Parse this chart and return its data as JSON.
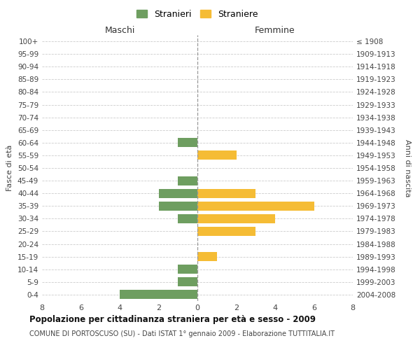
{
  "age_groups": [
    "100+",
    "95-99",
    "90-94",
    "85-89",
    "80-84",
    "75-79",
    "70-74",
    "65-69",
    "60-64",
    "55-59",
    "50-54",
    "45-49",
    "40-44",
    "35-39",
    "30-34",
    "25-29",
    "20-24",
    "15-19",
    "10-14",
    "5-9",
    "0-4"
  ],
  "birth_years": [
    "≤ 1908",
    "1909-1913",
    "1914-1918",
    "1919-1923",
    "1924-1928",
    "1929-1933",
    "1934-1938",
    "1939-1943",
    "1944-1948",
    "1949-1953",
    "1954-1958",
    "1959-1963",
    "1964-1968",
    "1969-1973",
    "1974-1978",
    "1979-1983",
    "1984-1988",
    "1989-1993",
    "1994-1998",
    "1999-2003",
    "2004-2008"
  ],
  "maschi_stranieri": [
    0,
    0,
    0,
    0,
    0,
    0,
    0,
    0,
    1,
    0,
    0,
    1,
    2,
    2,
    1,
    0,
    0,
    0,
    1,
    1,
    4
  ],
  "femmine_straniere": [
    0,
    0,
    0,
    0,
    0,
    0,
    0,
    0,
    0,
    2,
    0,
    0,
    3,
    6,
    4,
    3,
    0,
    1,
    0,
    0,
    0
  ],
  "color_maschi": "#6e9e60",
  "color_femmine": "#f5bc35",
  "xlim": 8,
  "title": "Popolazione per cittadinanza straniera per età e sesso - 2009",
  "subtitle": "COMUNE DI PORTOSCUSO (SU) - Dati ISTAT 1° gennaio 2009 - Elaborazione TUTTITALIA.IT",
  "legend_stranieri": "Stranieri",
  "legend_straniere": "Straniere",
  "maschi_label": "Maschi",
  "femmine_label": "Femmine",
  "fasce_label": "Fasce di età",
  "anni_label": "Anni di nascita",
  "bg_color": "#ffffff",
  "grid_color": "#cccccc"
}
